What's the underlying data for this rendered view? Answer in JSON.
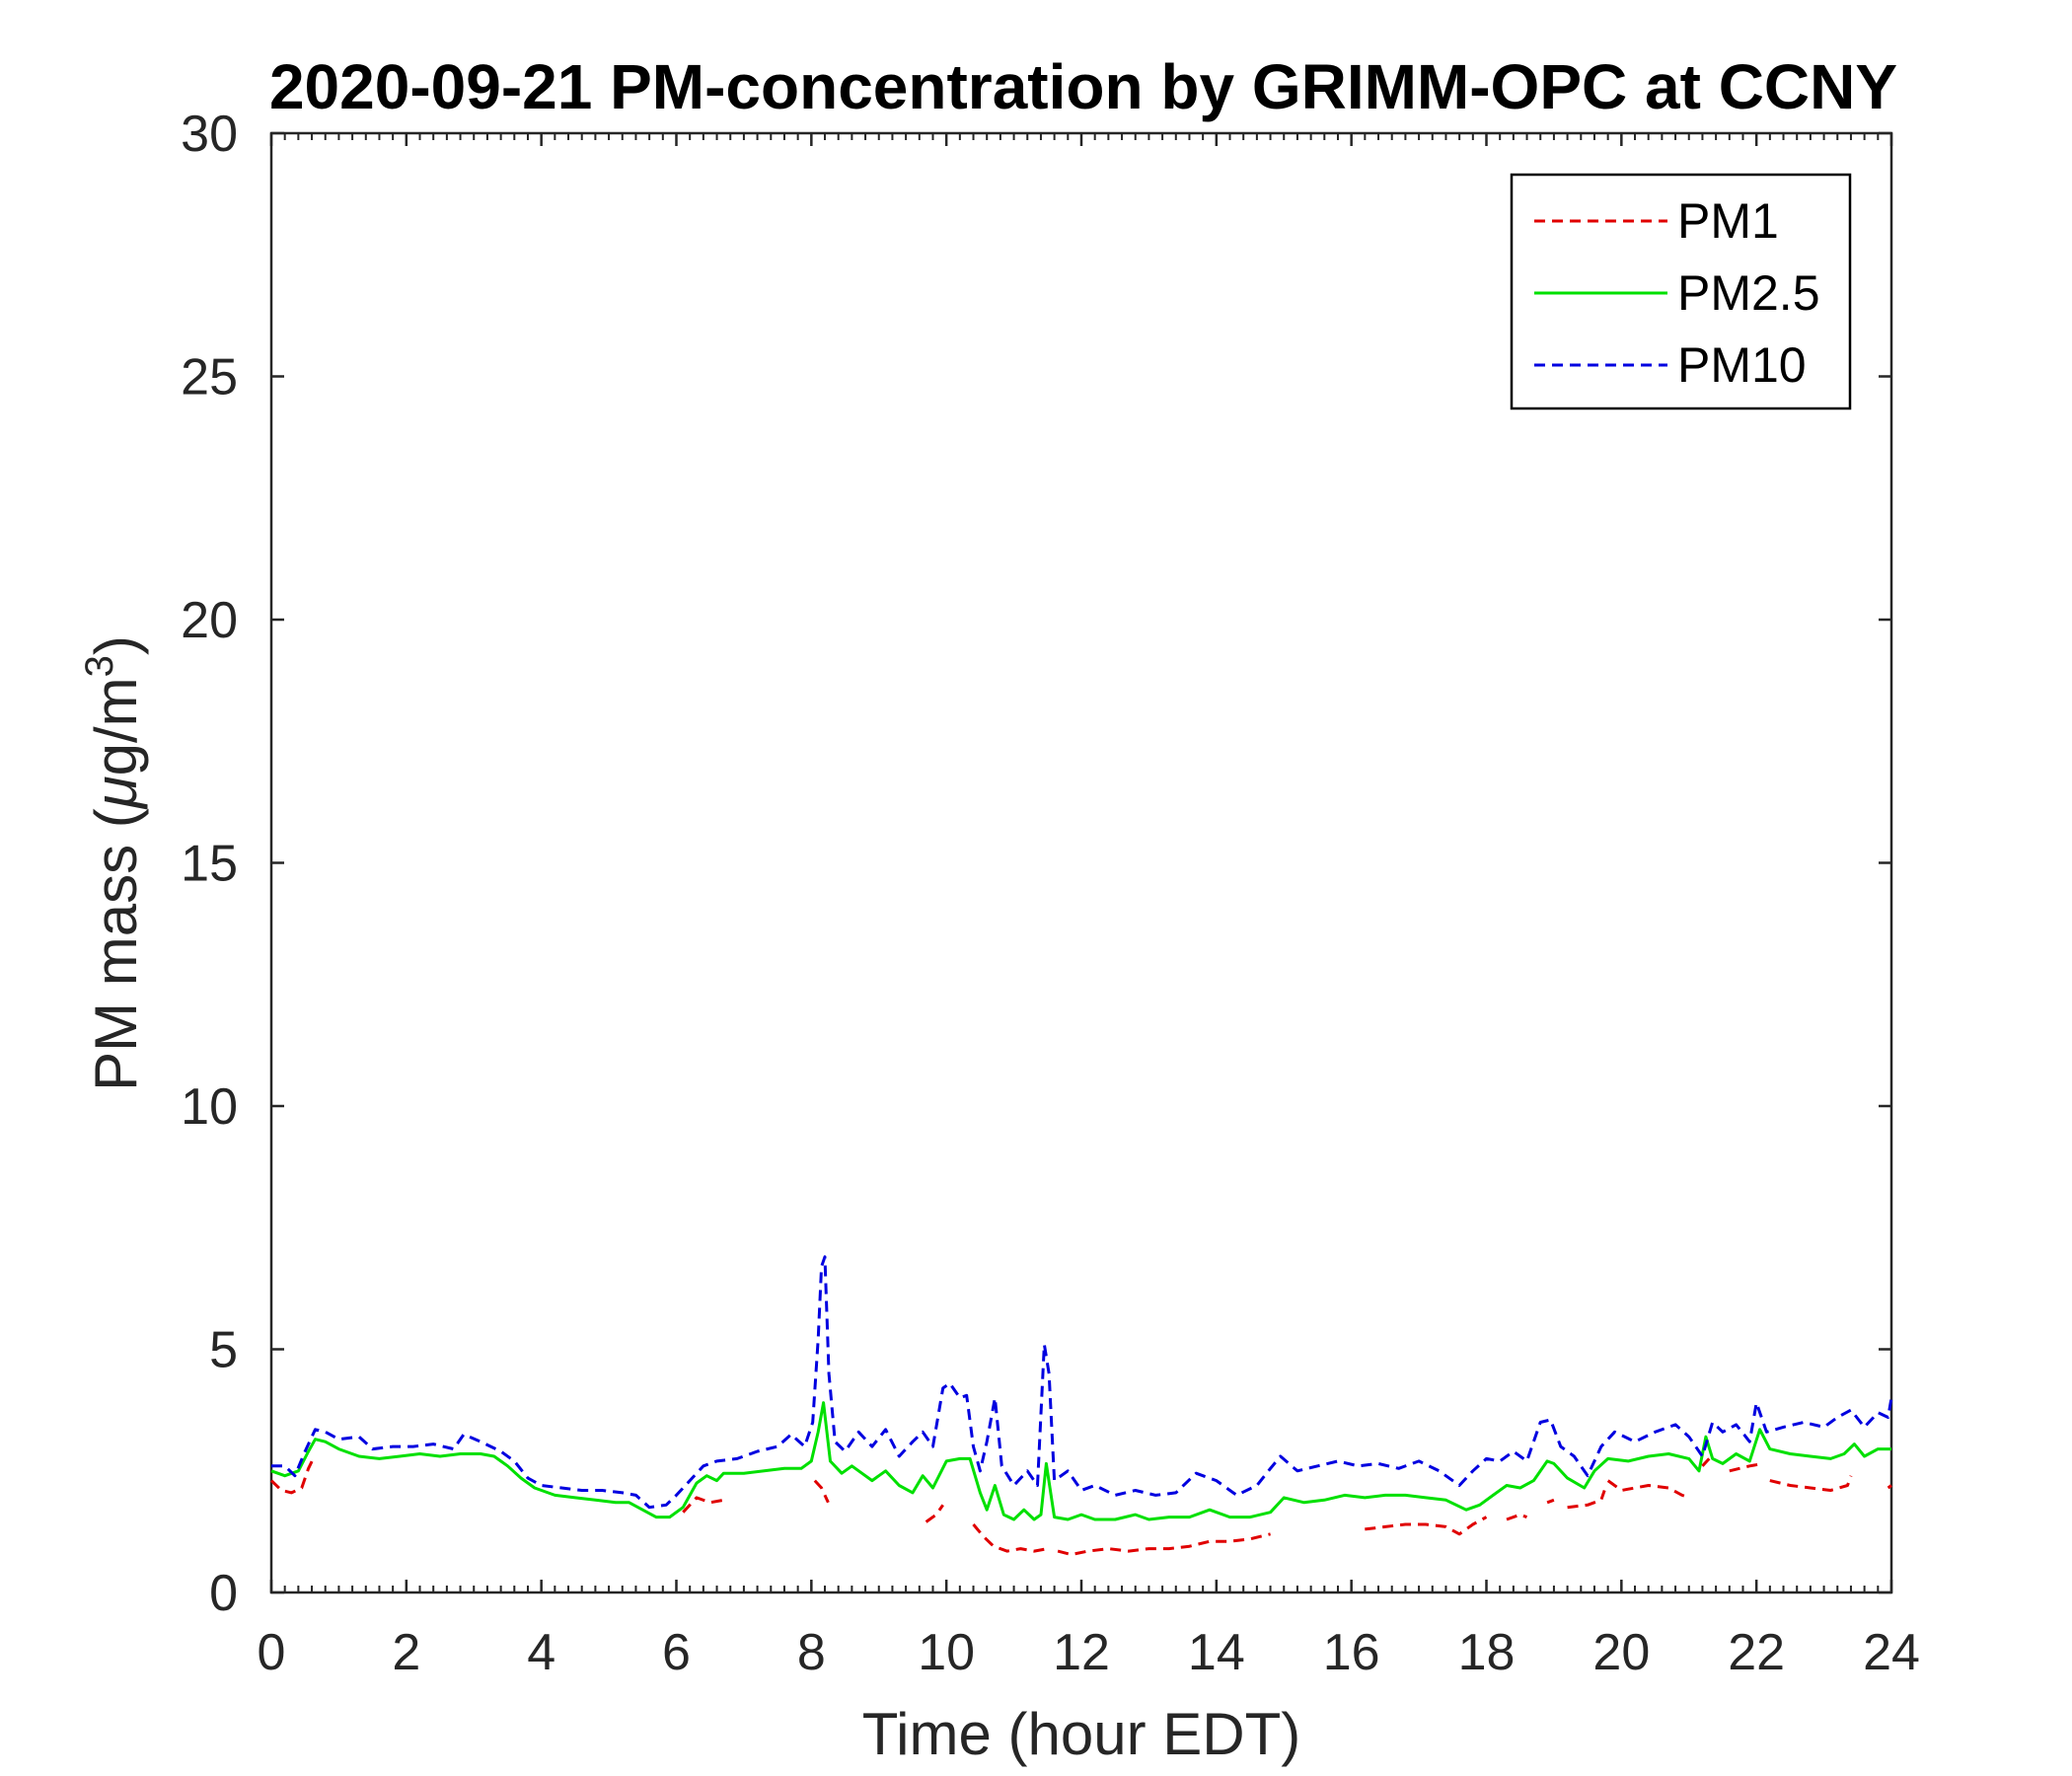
{
  "chart_data": {
    "type": "line",
    "title": "2020-09-21 PM-concentration by GRIMM-OPC at CCNY",
    "xlabel": "Time (hour EDT)",
    "ylabel": "PM mass (μg/m³)",
    "ylabel_parts": {
      "prefix": "PM mass (",
      "mu": "μ",
      "unit": "g/m",
      "sup": "3",
      "suffix": ")"
    },
    "xlim": [
      0,
      24
    ],
    "ylim": [
      0,
      30
    ],
    "xticks": [
      0,
      2,
      4,
      6,
      8,
      10,
      12,
      14,
      16,
      18,
      20,
      22,
      24
    ],
    "yticks": [
      0,
      5,
      10,
      15,
      20,
      25,
      30
    ],
    "grid": false,
    "legend_position": "top-right",
    "series": [
      {
        "name": "PM1",
        "color": "#e00000",
        "style": "dashed",
        "points": [
          [
            0.0,
            2.3
          ],
          [
            0.15,
            2.1
          ],
          [
            0.3,
            2.05
          ],
          [
            0.45,
            2.15
          ],
          [
            0.55,
            2.55
          ],
          [
            0.62,
            2.75
          ],
          null,
          [
            6.1,
            1.65
          ],
          [
            6.3,
            1.95
          ],
          [
            6.5,
            1.85
          ],
          [
            6.7,
            1.9
          ],
          null,
          [
            8.05,
            2.3
          ],
          [
            8.15,
            2.15
          ],
          [
            8.25,
            1.85
          ],
          null,
          [
            9.7,
            1.45
          ],
          [
            9.85,
            1.6
          ],
          [
            9.95,
            1.8
          ],
          null,
          [
            10.4,
            1.4
          ],
          [
            10.55,
            1.15
          ],
          [
            10.7,
            0.95
          ],
          [
            10.9,
            0.85
          ],
          [
            11.1,
            0.9
          ],
          [
            11.3,
            0.85
          ],
          [
            11.5,
            0.9
          ],
          null,
          [
            11.65,
            0.85
          ],
          [
            11.85,
            0.78
          ],
          [
            12.1,
            0.85
          ],
          [
            12.4,
            0.9
          ],
          [
            12.7,
            0.85
          ],
          [
            13.0,
            0.9
          ],
          [
            13.3,
            0.9
          ],
          [
            13.6,
            0.95
          ],
          [
            13.9,
            1.05
          ],
          [
            14.2,
            1.05
          ],
          [
            14.5,
            1.1
          ],
          [
            14.8,
            1.2
          ],
          null,
          [
            16.2,
            1.3
          ],
          [
            16.5,
            1.35
          ],
          [
            16.8,
            1.4
          ],
          [
            17.1,
            1.4
          ],
          [
            17.4,
            1.35
          ],
          [
            17.6,
            1.2
          ],
          [
            17.8,
            1.4
          ],
          [
            18.0,
            1.55
          ],
          null,
          [
            18.3,
            1.5
          ],
          [
            18.5,
            1.6
          ],
          [
            18.6,
            1.55
          ],
          null,
          [
            18.9,
            1.85
          ],
          [
            19.0,
            1.9
          ],
          null,
          [
            19.2,
            1.75
          ],
          [
            19.5,
            1.8
          ],
          [
            19.7,
            1.9
          ],
          [
            19.75,
            2.1
          ],
          null,
          [
            19.8,
            2.3
          ],
          [
            20.0,
            2.1
          ],
          [
            20.4,
            2.2
          ],
          [
            20.7,
            2.15
          ],
          [
            20.9,
            2.0
          ],
          [
            21.0,
            1.95
          ],
          null,
          [
            21.2,
            2.6
          ],
          [
            21.3,
            2.75
          ],
          null,
          [
            21.6,
            2.5
          ],
          [
            21.9,
            2.6
          ],
          [
            22.1,
            2.65
          ],
          null,
          [
            22.2,
            2.3
          ],
          [
            22.5,
            2.2
          ],
          [
            22.8,
            2.15
          ],
          [
            23.1,
            2.1
          ],
          [
            23.35,
            2.2
          ],
          [
            23.4,
            2.4
          ],
          null,
          [
            23.95,
            2.15
          ],
          [
            24.0,
            2.2
          ]
        ]
      },
      {
        "name": "PM2.5",
        "color": "#00e000",
        "style": "solid",
        "points": [
          [
            0.0,
            2.5
          ],
          [
            0.2,
            2.4
          ],
          [
            0.4,
            2.5
          ],
          [
            0.55,
            2.9
          ],
          [
            0.65,
            3.15
          ],
          [
            0.8,
            3.1
          ],
          [
            1.0,
            2.95
          ],
          [
            1.3,
            2.8
          ],
          [
            1.6,
            2.75
          ],
          [
            1.9,
            2.8
          ],
          [
            2.2,
            2.85
          ],
          [
            2.5,
            2.8
          ],
          [
            2.8,
            2.85
          ],
          [
            3.1,
            2.85
          ],
          [
            3.3,
            2.8
          ],
          [
            3.5,
            2.6
          ],
          [
            3.7,
            2.35
          ],
          [
            3.9,
            2.15
          ],
          [
            4.2,
            2.0
          ],
          [
            4.5,
            1.95
          ],
          [
            4.8,
            1.9
          ],
          [
            5.1,
            1.85
          ],
          [
            5.3,
            1.85
          ],
          [
            5.5,
            1.7
          ],
          [
            5.7,
            1.55
          ],
          [
            5.9,
            1.55
          ],
          [
            6.1,
            1.75
          ],
          [
            6.3,
            2.25
          ],
          [
            6.45,
            2.4
          ],
          [
            6.6,
            2.3
          ],
          [
            6.7,
            2.45
          ],
          [
            7.0,
            2.45
          ],
          [
            7.3,
            2.5
          ],
          [
            7.6,
            2.55
          ],
          [
            7.85,
            2.55
          ],
          [
            8.0,
            2.7
          ],
          [
            8.1,
            3.3
          ],
          [
            8.18,
            3.9
          ],
          [
            8.28,
            2.7
          ],
          [
            8.45,
            2.45
          ],
          [
            8.6,
            2.6
          ],
          [
            8.75,
            2.45
          ],
          [
            8.9,
            2.3
          ],
          [
            9.1,
            2.5
          ],
          [
            9.3,
            2.2
          ],
          [
            9.5,
            2.05
          ],
          [
            9.65,
            2.4
          ],
          [
            9.8,
            2.15
          ],
          [
            10.0,
            2.7
          ],
          [
            10.2,
            2.75
          ],
          [
            10.35,
            2.75
          ],
          [
            10.5,
            2.05
          ],
          [
            10.6,
            1.7
          ],
          [
            10.72,
            2.2
          ],
          [
            10.85,
            1.6
          ],
          [
            11.0,
            1.5
          ],
          [
            11.15,
            1.7
          ],
          [
            11.3,
            1.5
          ],
          [
            11.4,
            1.6
          ],
          [
            11.48,
            2.65
          ],
          [
            11.6,
            1.55
          ],
          [
            11.8,
            1.5
          ],
          [
            12.0,
            1.6
          ],
          [
            12.2,
            1.5
          ],
          [
            12.5,
            1.5
          ],
          [
            12.8,
            1.6
          ],
          [
            13.0,
            1.5
          ],
          [
            13.3,
            1.55
          ],
          [
            13.6,
            1.55
          ],
          [
            13.9,
            1.7
          ],
          [
            14.2,
            1.55
          ],
          [
            14.5,
            1.55
          ],
          [
            14.8,
            1.65
          ],
          [
            15.0,
            1.95
          ],
          [
            15.3,
            1.85
          ],
          [
            15.6,
            1.9
          ],
          [
            15.9,
            2.0
          ],
          [
            16.2,
            1.95
          ],
          [
            16.5,
            2.0
          ],
          [
            16.8,
            2.0
          ],
          [
            17.1,
            1.95
          ],
          [
            17.4,
            1.9
          ],
          [
            17.7,
            1.7
          ],
          [
            17.9,
            1.8
          ],
          [
            18.1,
            2.0
          ],
          [
            18.3,
            2.2
          ],
          [
            18.5,
            2.15
          ],
          [
            18.7,
            2.3
          ],
          [
            18.9,
            2.7
          ],
          [
            19.0,
            2.65
          ],
          [
            19.2,
            2.35
          ],
          [
            19.45,
            2.15
          ],
          [
            19.6,
            2.5
          ],
          [
            19.8,
            2.75
          ],
          [
            20.1,
            2.7
          ],
          [
            20.4,
            2.8
          ],
          [
            20.7,
            2.85
          ],
          [
            21.0,
            2.75
          ],
          [
            21.15,
            2.5
          ],
          [
            21.25,
            3.2
          ],
          [
            21.35,
            2.75
          ],
          [
            21.5,
            2.65
          ],
          [
            21.7,
            2.85
          ],
          [
            21.9,
            2.7
          ],
          [
            22.05,
            3.35
          ],
          [
            22.2,
            2.95
          ],
          [
            22.5,
            2.85
          ],
          [
            22.8,
            2.8
          ],
          [
            23.1,
            2.75
          ],
          [
            23.3,
            2.85
          ],
          [
            23.45,
            3.05
          ],
          [
            23.6,
            2.8
          ],
          [
            23.8,
            2.95
          ],
          [
            24.0,
            2.95
          ]
        ]
      },
      {
        "name": "PM10",
        "color": "#0000e0",
        "style": "dashed",
        "points": [
          [
            0.0,
            2.6
          ],
          [
            0.2,
            2.6
          ],
          [
            0.35,
            2.4
          ],
          [
            0.5,
            2.9
          ],
          [
            0.65,
            3.35
          ],
          [
            0.8,
            3.3
          ],
          [
            1.0,
            3.15
          ],
          [
            1.3,
            3.2
          ],
          [
            1.5,
            2.95
          ],
          [
            1.8,
            3.0
          ],
          [
            2.1,
            3.0
          ],
          [
            2.4,
            3.05
          ],
          [
            2.7,
            2.95
          ],
          [
            2.85,
            3.25
          ],
          [
            3.1,
            3.1
          ],
          [
            3.4,
            2.9
          ],
          [
            3.6,
            2.7
          ],
          [
            3.8,
            2.35
          ],
          [
            4.0,
            2.2
          ],
          [
            4.3,
            2.15
          ],
          [
            4.6,
            2.1
          ],
          [
            4.9,
            2.1
          ],
          [
            5.2,
            2.05
          ],
          [
            5.4,
            2.0
          ],
          [
            5.6,
            1.75
          ],
          [
            5.85,
            1.8
          ],
          [
            6.0,
            2.0
          ],
          [
            6.2,
            2.3
          ],
          [
            6.4,
            2.6
          ],
          [
            6.6,
            2.7
          ],
          [
            6.9,
            2.75
          ],
          [
            7.2,
            2.9
          ],
          [
            7.5,
            3.0
          ],
          [
            7.7,
            3.25
          ],
          [
            7.9,
            3.0
          ],
          [
            8.02,
            3.5
          ],
          [
            8.1,
            5.2
          ],
          [
            8.15,
            6.7
          ],
          [
            8.2,
            6.9
          ],
          [
            8.26,
            4.5
          ],
          [
            8.35,
            3.1
          ],
          [
            8.5,
            2.9
          ],
          [
            8.7,
            3.3
          ],
          [
            8.9,
            3.0
          ],
          [
            9.1,
            3.35
          ],
          [
            9.3,
            2.8
          ],
          [
            9.5,
            3.1
          ],
          [
            9.65,
            3.3
          ],
          [
            9.8,
            3.0
          ],
          [
            9.95,
            4.2
          ],
          [
            10.05,
            4.3
          ],
          [
            10.2,
            4.0
          ],
          [
            10.3,
            4.05
          ],
          [
            10.4,
            3.0
          ],
          [
            10.5,
            2.5
          ],
          [
            10.6,
            3.1
          ],
          [
            10.72,
            4.0
          ],
          [
            10.82,
            2.6
          ],
          [
            11.0,
            2.2
          ],
          [
            11.2,
            2.5
          ],
          [
            11.35,
            2.2
          ],
          [
            11.45,
            5.1
          ],
          [
            11.52,
            4.5
          ],
          [
            11.6,
            2.3
          ],
          [
            11.8,
            2.5
          ],
          [
            12.0,
            2.1
          ],
          [
            12.2,
            2.2
          ],
          [
            12.5,
            2.0
          ],
          [
            12.8,
            2.1
          ],
          [
            13.1,
            2.0
          ],
          [
            13.4,
            2.05
          ],
          [
            13.7,
            2.45
          ],
          [
            14.0,
            2.3
          ],
          [
            14.3,
            2.0
          ],
          [
            14.6,
            2.2
          ],
          [
            14.8,
            2.55
          ],
          [
            14.95,
            2.8
          ],
          [
            15.2,
            2.5
          ],
          [
            15.5,
            2.6
          ],
          [
            15.8,
            2.7
          ],
          [
            16.1,
            2.6
          ],
          [
            16.4,
            2.65
          ],
          [
            16.7,
            2.55
          ],
          [
            17.0,
            2.7
          ],
          [
            17.3,
            2.5
          ],
          [
            17.6,
            2.2
          ],
          [
            17.8,
            2.5
          ],
          [
            18.0,
            2.75
          ],
          [
            18.2,
            2.7
          ],
          [
            18.4,
            2.9
          ],
          [
            18.6,
            2.7
          ],
          [
            18.8,
            3.5
          ],
          [
            18.95,
            3.55
          ],
          [
            19.1,
            3.0
          ],
          [
            19.3,
            2.8
          ],
          [
            19.5,
            2.4
          ],
          [
            19.7,
            3.0
          ],
          [
            19.9,
            3.3
          ],
          [
            20.2,
            3.1
          ],
          [
            20.5,
            3.3
          ],
          [
            20.8,
            3.45
          ],
          [
            21.0,
            3.2
          ],
          [
            21.2,
            2.8
          ],
          [
            21.35,
            3.5
          ],
          [
            21.5,
            3.3
          ],
          [
            21.7,
            3.45
          ],
          [
            21.9,
            3.1
          ],
          [
            22.0,
            3.9
          ],
          [
            22.15,
            3.3
          ],
          [
            22.4,
            3.4
          ],
          [
            22.7,
            3.5
          ],
          [
            23.0,
            3.4
          ],
          [
            23.2,
            3.6
          ],
          [
            23.4,
            3.75
          ],
          [
            23.6,
            3.4
          ],
          [
            23.8,
            3.7
          ],
          [
            23.95,
            3.6
          ],
          [
            24.0,
            4.0
          ]
        ]
      }
    ]
  }
}
